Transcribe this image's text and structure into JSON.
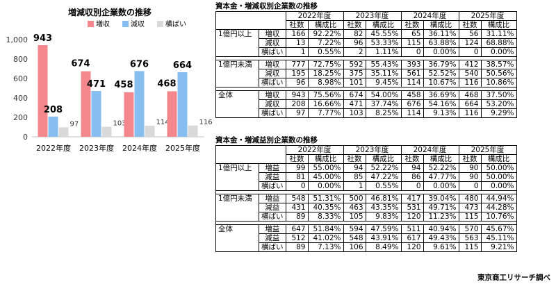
{
  "chart_data": {
    "type": "bar",
    "title": "増減収別企業数の推移",
    "categories": [
      "2022年度",
      "2023年度",
      "2024年度",
      "2025年度"
    ],
    "series": [
      {
        "name": "増収",
        "values": [
          943,
          674,
          458,
          468
        ],
        "color": "#f4878b"
      },
      {
        "name": "減収",
        "values": [
          208,
          471,
          676,
          664
        ],
        "color": "#86bef0"
      },
      {
        "name": "横ばい",
        "values": [
          97,
          103,
          114,
          116
        ],
        "color": "#d9d9d9"
      }
    ],
    "yticks": [
      "0",
      "200",
      "400",
      "600",
      "800",
      "1,000"
    ],
    "ylim": [
      0,
      1000
    ],
    "grid": false,
    "legend": "top-right"
  },
  "table1": {
    "title": "資本金・増減収別企業数の推移",
    "years": [
      "2022年度",
      "2023年度",
      "2024年度",
      "2025年度"
    ],
    "sub_headers": [
      "社数",
      "構成比"
    ],
    "groups": [
      {
        "category": "1億円以上",
        "rows": [
          {
            "type": "増収",
            "cells": [
              "166",
              "92.22%",
              "82",
              "45.55%",
              "65",
              "36.11%",
              "56",
              "31.11%"
            ]
          },
          {
            "type": "減収",
            "cells": [
              "13",
              "7.22%",
              "96",
              "53.33%",
              "115",
              "63.88%",
              "124",
              "68.88%"
            ]
          },
          {
            "type": "横ばい",
            "cells": [
              "1",
              "0.55%",
              "2",
              "1.11%",
              "0",
              "0.00%",
              "0",
              "0.00%"
            ]
          }
        ]
      },
      {
        "category": "1億円未満",
        "rows": [
          {
            "type": "増収",
            "cells": [
              "777",
              "72.75%",
              "592",
              "55.43%",
              "393",
              "36.79%",
              "412",
              "38.57%"
            ]
          },
          {
            "type": "減収",
            "cells": [
              "195",
              "18.25%",
              "375",
              "35.11%",
              "561",
              "52.52%",
              "540",
              "50.56%"
            ]
          },
          {
            "type": "横ばい",
            "cells": [
              "96",
              "8.98%",
              "101",
              "9.45%",
              "114",
              "10.67%",
              "116",
              "10.86%"
            ]
          }
        ]
      },
      {
        "category": "全体",
        "rows": [
          {
            "type": "増収",
            "cells": [
              "943",
              "75.56%",
              "674",
              "54.00%",
              "458",
              "36.69%",
              "468",
              "37.50%"
            ]
          },
          {
            "type": "減収",
            "cells": [
              "208",
              "16.66%",
              "471",
              "37.74%",
              "676",
              "54.16%",
              "664",
              "53.20%"
            ]
          },
          {
            "type": "横ばい",
            "cells": [
              "97",
              "7.77%",
              "103",
              "8.25%",
              "114",
              "9.13%",
              "116",
              "9.29%"
            ]
          }
        ]
      }
    ]
  },
  "table2": {
    "title": "資本金・増減益別企業数の推移",
    "years": [
      "2022年度",
      "2023年度",
      "2024年度",
      "2025年度"
    ],
    "sub_headers": [
      "社数",
      "構成比"
    ],
    "groups": [
      {
        "category": "1億円以上",
        "rows": [
          {
            "type": "増益",
            "cells": [
              "99",
              "55.00%",
              "94",
              "52.22%",
              "94",
              "52.22%",
              "90",
              "50.00%"
            ]
          },
          {
            "type": "減益",
            "cells": [
              "81",
              "45.00%",
              "85",
              "47.22%",
              "86",
              "47.77%",
              "90",
              "50.00%"
            ]
          },
          {
            "type": "横ばい",
            "cells": [
              "0",
              "0.00%",
              "1",
              "0.55%",
              "0",
              "0.00%",
              "0",
              "0.00%"
            ]
          }
        ]
      },
      {
        "category": "1億円未満",
        "rows": [
          {
            "type": "増益",
            "cells": [
              "548",
              "51.31%",
              "500",
              "46.81%",
              "417",
              "39.04%",
              "480",
              "44.94%"
            ]
          },
          {
            "type": "減益",
            "cells": [
              "431",
              "40.35%",
              "463",
              "43.35%",
              "531",
              "49.71%",
              "473",
              "44.28%"
            ]
          },
          {
            "type": "横ばい",
            "cells": [
              "89",
              "8.33%",
              "105",
              "9.83%",
              "120",
              "11.23%",
              "115",
              "10.76%"
            ]
          }
        ]
      },
      {
        "category": "全体",
        "rows": [
          {
            "type": "増益",
            "cells": [
              "647",
              "51.84%",
              "594",
              "47.59%",
              "511",
              "40.94%",
              "570",
              "45.67%"
            ]
          },
          {
            "type": "減益",
            "cells": [
              "512",
              "41.02%",
              "548",
              "43.91%",
              "617",
              "49.43%",
              "563",
              "45.11%"
            ]
          },
          {
            "type": "横ばい",
            "cells": [
              "89",
              "7.13%",
              "106",
              "8.49%",
              "120",
              "9.61%",
              "115",
              "9.21%"
            ]
          }
        ]
      }
    ]
  },
  "source": "東京商工リサーチ調べ"
}
